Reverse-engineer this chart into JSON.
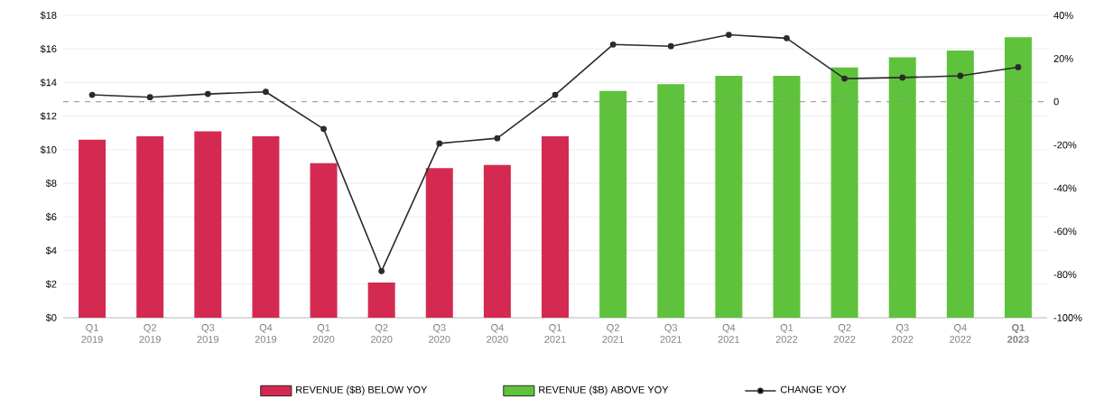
{
  "chart_data": {
    "type": "bar",
    "categories": [
      "Q1 2019",
      "Q2 2019",
      "Q3 2019",
      "Q4 2019",
      "Q1 2020",
      "Q2 2020",
      "Q3 2020",
      "Q4 2020",
      "Q1 2021",
      "Q2 2021",
      "Q3 2021",
      "Q4 2021",
      "Q1 2022",
      "Q2 2022",
      "Q3 2022",
      "Q4 2022",
      "**Q1 2023**"
    ],
    "series": [
      {
        "name": "REVENUE ($B) BELOW YOY",
        "color": "#d42a52",
        "values": [
          10.6,
          10.8,
          11.1,
          10.8,
          9.2,
          2.1,
          8.9,
          9.1,
          10.8,
          null,
          null,
          null,
          null,
          null,
          null,
          null,
          null
        ]
      },
      {
        "name": "REVENUE ($B) ABOVE YOY",
        "color": "#5fc23c",
        "values": [
          null,
          null,
          null,
          null,
          null,
          null,
          null,
          null,
          null,
          13.5,
          13.9,
          14.4,
          14.4,
          14.9,
          15.5,
          15.9,
          16.7
        ]
      },
      {
        "name": "CHANGE YOY",
        "type": "line",
        "axis": "y2",
        "color": "#2b2b2b",
        "marker": "circle",
        "values": [
          3.2,
          2.1,
          3.6,
          4.6,
          -12.6,
          -78.4,
          -19.3,
          -16.9,
          3.2,
          26.5,
          25.7,
          31,
          29.4,
          10.7,
          11.2,
          12,
          16
        ]
      }
    ],
    "ylim": [
      0,
      18
    ],
    "yticks": [
      {
        "value": 0,
        "label": "$0"
      },
      {
        "value": 2,
        "label": "$2"
      },
      {
        "value": 4,
        "label": "$4"
      },
      {
        "value": 6,
        "label": "$6"
      },
      {
        "value": 8,
        "label": "$8"
      },
      {
        "value": 10,
        "label": "$10"
      },
      {
        "value": 12,
        "label": "$12"
      },
      {
        "value": 14,
        "label": "$14"
      },
      {
        "value": 16,
        "label": "$16"
      },
      {
        "value": 18,
        "label": "$18"
      }
    ],
    "y2lim": [
      -100,
      40
    ],
    "y2ticks": [
      {
        "value": -100,
        "label": "-100%"
      },
      {
        "value": -80,
        "label": "-80%"
      },
      {
        "value": -60,
        "label": "-60%"
      },
      {
        "value": -40,
        "label": "-40%"
      },
      {
        "value": -20,
        "label": "-20%"
      },
      0,
      {
        "value": 20,
        "label": "20%"
      },
      {
        "value": 40,
        "label": "40%"
      }
    ],
    "ref_lines": [
      {
        "axis": "y2",
        "value": 0,
        "color": "#8a8f8c",
        "line_style": "dashed"
      }
    ],
    "grid": "y",
    "legend": "bottom"
  }
}
